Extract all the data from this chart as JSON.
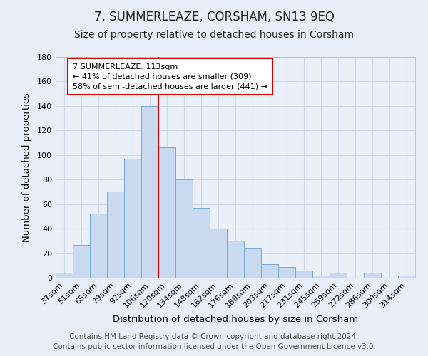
{
  "title": "7, SUMMERLEAZE, CORSHAM, SN13 9EQ",
  "subtitle": "Size of property relative to detached houses in Corsham",
  "xlabel": "Distribution of detached houses by size in Corsham",
  "ylabel": "Number of detached properties",
  "categories": [
    "37sqm",
    "51sqm",
    "65sqm",
    "79sqm",
    "92sqm",
    "106sqm",
    "120sqm",
    "134sqm",
    "148sqm",
    "162sqm",
    "176sqm",
    "189sqm",
    "203sqm",
    "217sqm",
    "231sqm",
    "245sqm",
    "259sqm",
    "272sqm",
    "286sqm",
    "300sqm",
    "314sqm"
  ],
  "values": [
    4,
    27,
    52,
    70,
    97,
    140,
    106,
    80,
    57,
    40,
    30,
    24,
    11,
    9,
    6,
    2,
    4,
    0,
    4,
    0,
    2
  ],
  "bar_color": "#c9d9f0",
  "bar_edge_color": "#7aaad0",
  "vline_color": "#cc0000",
  "ylim": [
    0,
    180
  ],
  "yticks": [
    0,
    20,
    40,
    60,
    80,
    100,
    120,
    140,
    160,
    180
  ],
  "annotation_title": "7 SUMMERLEAZE: 113sqm",
  "annotation_line1": "← 41% of detached houses are smaller (309)",
  "annotation_line2": "58% of semi-detached houses are larger (441) →",
  "annotation_box_color": "#ffffff",
  "annotation_box_edge_color": "#cc0000",
  "footer_line1": "Contains HM Land Registry data © Crown copyright and database right 2024.",
  "footer_line2": "Contains public sector information licensed under the Open Government Licence v3.0.",
  "background_color": "#e8eef8",
  "plot_background_color": "#eaf0f8",
  "title_fontsize": 12,
  "subtitle_fontsize": 10,
  "axis_label_fontsize": 9.5,
  "tick_fontsize": 8,
  "footer_fontsize": 7.5,
  "grid_color": "#d0d8e8"
}
